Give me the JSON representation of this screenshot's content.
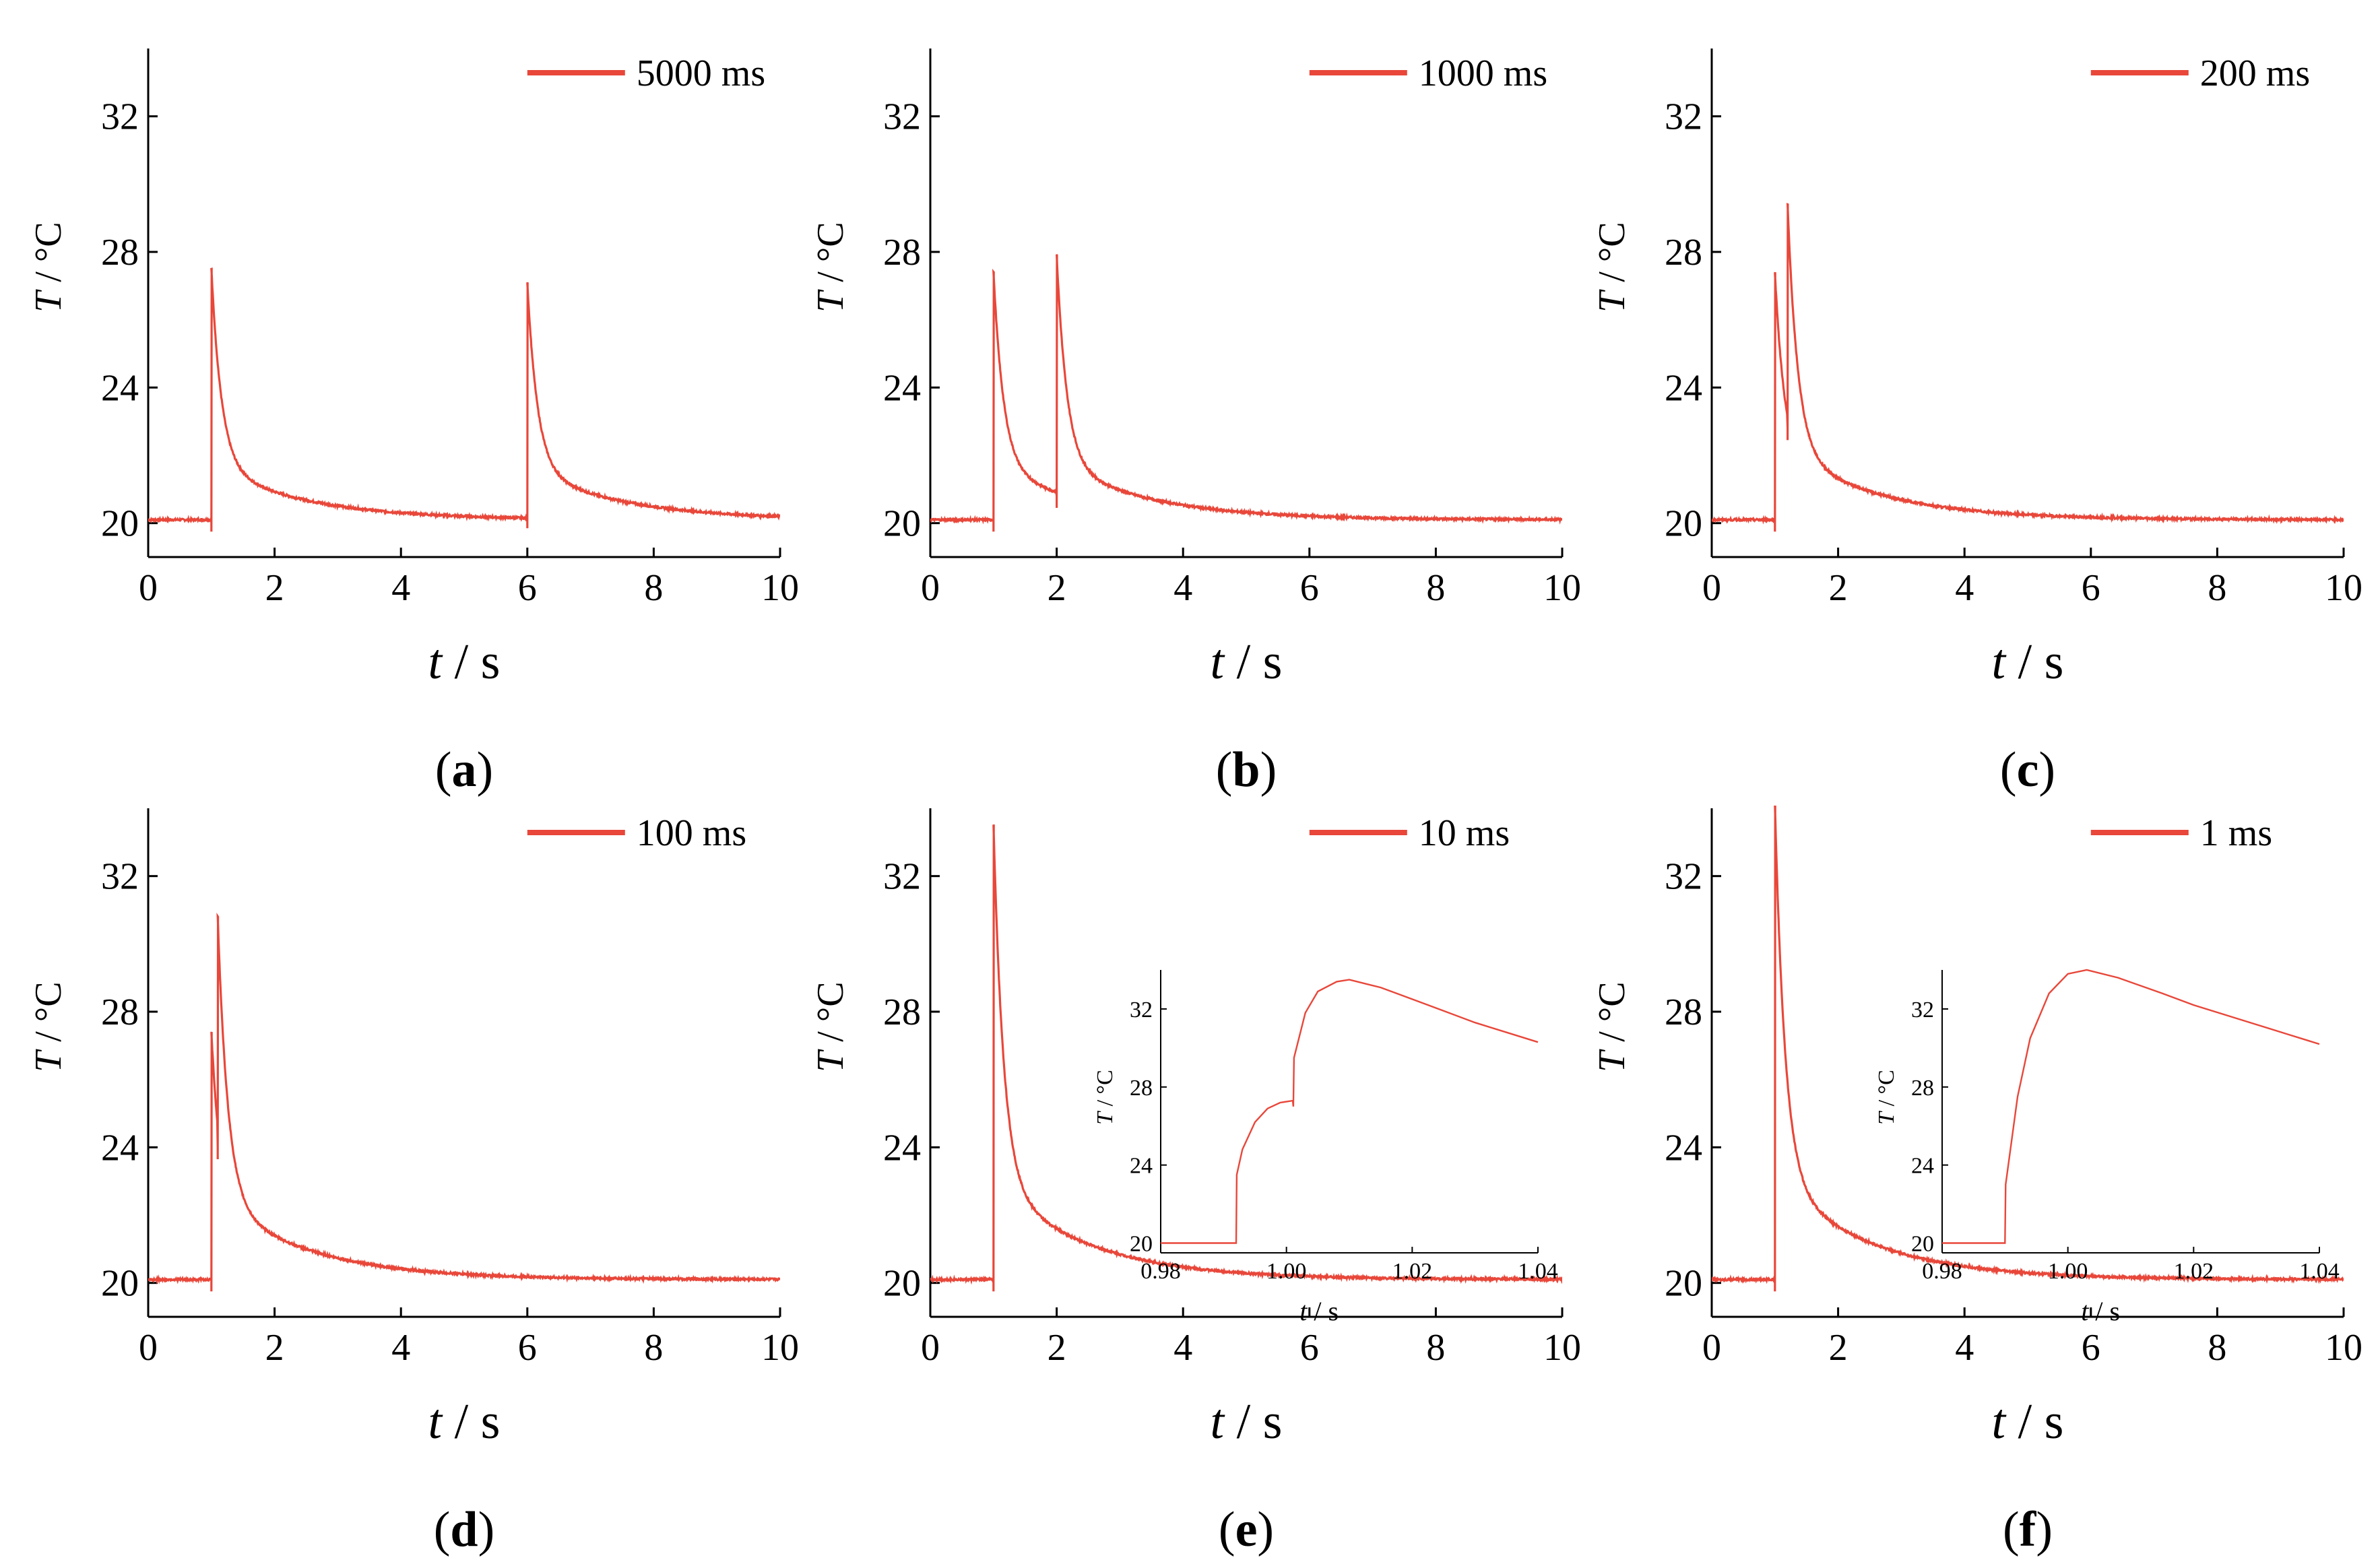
{
  "figure": {
    "colors": {
      "series": "#e8473a",
      "axis": "#000000",
      "background": "#ffffff"
    }
  },
  "chart_data": [
    {
      "id": "a",
      "type": "line",
      "panel_label": "a",
      "legend": "5000 ms",
      "xlabel": {
        "var": "t",
        "unit": " / s"
      },
      "ylabel": {
        "var": "T",
        "unit": " / °C"
      },
      "xlim": [
        0,
        10
      ],
      "ylim": [
        19,
        34
      ],
      "xticks": [
        "0",
        "2",
        "4",
        "6",
        "8",
        "10"
      ],
      "yticks": [
        "20",
        "24",
        "28",
        "32"
      ],
      "pulses": [
        {
          "t": 1.0,
          "peak": 27.5,
          "start": 20.1
        },
        {
          "t": 6.0,
          "peak": 27.1,
          "start": 20.2
        }
      ],
      "baseline": 20.1
    },
    {
      "id": "b",
      "type": "line",
      "panel_label": "b",
      "legend": "1000 ms",
      "xlabel": {
        "var": "t",
        "unit": " / s"
      },
      "ylabel": {
        "var": "T",
        "unit": " / °C"
      },
      "xlim": [
        0,
        10
      ],
      "ylim": [
        19,
        34
      ],
      "xticks": [
        "0",
        "2",
        "4",
        "6",
        "8",
        "10"
      ],
      "yticks": [
        "20",
        "24",
        "28",
        "32"
      ],
      "pulses": [
        {
          "t": 1.0,
          "peak": 27.4,
          "start": 20.1
        },
        {
          "t": 2.0,
          "peak": 27.9,
          "start": 20.8
        }
      ],
      "baseline": 20.1
    },
    {
      "id": "c",
      "type": "line",
      "panel_label": "c",
      "legend": "200 ms",
      "xlabel": {
        "var": "t",
        "unit": " / s"
      },
      "ylabel": {
        "var": "T",
        "unit": " / °C"
      },
      "xlim": [
        0,
        10
      ],
      "ylim": [
        19,
        34
      ],
      "xticks": [
        "0",
        "2",
        "4",
        "6",
        "8",
        "10"
      ],
      "yticks": [
        "20",
        "24",
        "28",
        "32"
      ],
      "pulses": [
        {
          "t": 1.0,
          "peak": 27.4,
          "start": 20.1
        },
        {
          "t": 1.2,
          "peak": 29.4,
          "start": 22.8
        }
      ],
      "baseline": 20.1
    },
    {
      "id": "d",
      "type": "line",
      "panel_label": "d",
      "legend": "100 ms",
      "xlabel": {
        "var": "t",
        "unit": " / s"
      },
      "ylabel": {
        "var": "T",
        "unit": " / °C"
      },
      "xlim": [
        0,
        10
      ],
      "ylim": [
        19,
        34
      ],
      "xticks": [
        "0",
        "2",
        "4",
        "6",
        "8",
        "10"
      ],
      "yticks": [
        "20",
        "24",
        "28",
        "32"
      ],
      "pulses": [
        {
          "t": 1.0,
          "peak": 27.4,
          "start": 20.1
        },
        {
          "t": 1.1,
          "peak": 30.8,
          "start": 24.0
        }
      ],
      "baseline": 20.1
    },
    {
      "id": "e",
      "type": "line",
      "panel_label": "e",
      "legend": "10 ms",
      "xlabel": {
        "var": "t",
        "unit": " / s"
      },
      "ylabel": {
        "var": "T",
        "unit": " / °C"
      },
      "xlim": [
        0,
        10
      ],
      "ylim": [
        19,
        34
      ],
      "xticks": [
        "0",
        "2",
        "4",
        "6",
        "8",
        "10"
      ],
      "yticks": [
        "20",
        "24",
        "28",
        "32"
      ],
      "pulses": [
        {
          "t": 1.0,
          "peak": 33.5,
          "start": 20.1
        }
      ],
      "baseline": 20.1,
      "inset": {
        "xlim": [
          0.98,
          1.04
        ],
        "ylim": [
          19.5,
          34
        ],
        "xticks": [
          "0.98",
          "1.00",
          "1.02",
          "1.04"
        ],
        "yticks": [
          "20",
          "24",
          "28",
          "32"
        ],
        "xlabel": {
          "var": "t",
          "unit": " / s"
        },
        "ylabel": {
          "var": "T",
          "unit": " / °C"
        },
        "points": [
          [
            0.98,
            20.0
          ],
          [
            0.991,
            20.0
          ],
          [
            0.992,
            20.0
          ],
          [
            0.9921,
            23.5
          ],
          [
            0.993,
            24.8
          ],
          [
            0.995,
            26.2
          ],
          [
            0.997,
            26.9
          ],
          [
            0.999,
            27.2
          ],
          [
            1.001,
            27.3
          ],
          [
            1.0011,
            27.0
          ],
          [
            1.0012,
            29.5
          ],
          [
            1.003,
            31.8
          ],
          [
            1.005,
            32.9
          ],
          [
            1.008,
            33.4
          ],
          [
            1.01,
            33.5
          ],
          [
            1.015,
            33.1
          ],
          [
            1.02,
            32.5
          ],
          [
            1.025,
            31.9
          ],
          [
            1.03,
            31.3
          ],
          [
            1.035,
            30.8
          ],
          [
            1.04,
            30.3
          ]
        ]
      }
    },
    {
      "id": "f",
      "type": "line",
      "panel_label": "f",
      "legend": "1 ms",
      "xlabel": {
        "var": "t",
        "unit": " / s"
      },
      "ylabel": {
        "var": "T",
        "unit": " / °C"
      },
      "xlim": [
        0,
        10
      ],
      "ylim": [
        19,
        34
      ],
      "xticks": [
        "0",
        "2",
        "4",
        "6",
        "8",
        "10"
      ],
      "yticks": [
        "20",
        "24",
        "28",
        "32"
      ],
      "pulses": [
        {
          "t": 1.0,
          "peak": 34.1,
          "start": 20.1
        }
      ],
      "baseline": 20.1,
      "inset": {
        "xlim": [
          0.98,
          1.04
        ],
        "ylim": [
          19.5,
          34
        ],
        "xticks": [
          "0.98",
          "1.00",
          "1.02",
          "1.04"
        ],
        "yticks": [
          "20",
          "24",
          "28",
          "32"
        ],
        "xlabel": {
          "var": "t",
          "unit": " / s"
        },
        "ylabel": {
          "var": "T",
          "unit": " / °C"
        },
        "points": [
          [
            0.98,
            20.0
          ],
          [
            0.99,
            20.0
          ],
          [
            0.9901,
            23.0
          ],
          [
            0.992,
            27.5
          ],
          [
            0.994,
            30.5
          ],
          [
            0.997,
            32.8
          ],
          [
            1.0,
            33.8
          ],
          [
            1.003,
            34.0
          ],
          [
            1.008,
            33.6
          ],
          [
            1.015,
            32.8
          ],
          [
            1.02,
            32.2
          ],
          [
            1.025,
            31.7
          ],
          [
            1.03,
            31.2
          ],
          [
            1.035,
            30.7
          ],
          [
            1.04,
            30.2
          ]
        ]
      }
    }
  ]
}
